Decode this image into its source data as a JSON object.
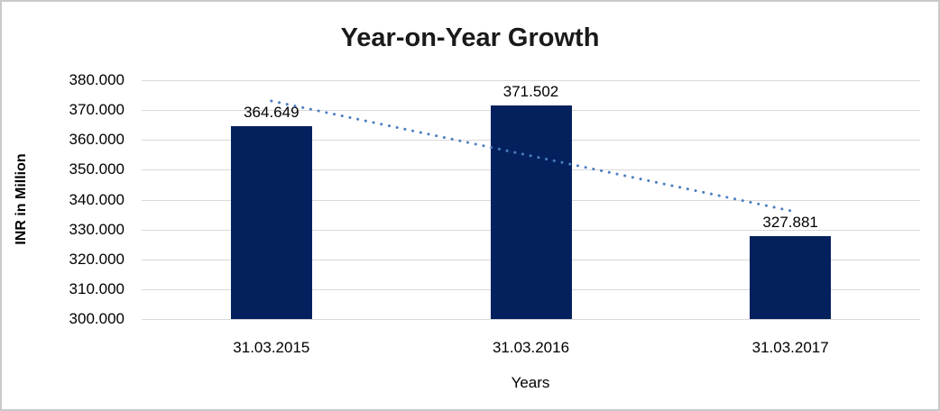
{
  "frame": {
    "background": "#ffffff",
    "border_color": "#c9c9c9"
  },
  "chart_data": {
    "type": "bar",
    "title": "Year-on-Year Growth",
    "xlabel": "Years",
    "ylabel": "INR in Million",
    "categories": [
      "31.03.2015",
      "31.03.2016",
      "31.03.2017"
    ],
    "values": [
      364.649,
      371.502,
      327.881
    ],
    "value_labels": [
      "364.649",
      "371.502",
      "327.881"
    ],
    "ylim": [
      300,
      380
    ],
    "y_ticks": [
      "380.000",
      "370.000",
      "360.000",
      "350.000",
      "340.000",
      "330.000",
      "320.000",
      "310.000",
      "300.000"
    ],
    "y_tick_values": [
      380,
      370,
      360,
      350,
      340,
      330,
      320,
      310,
      300
    ],
    "grid": true,
    "legend": "none",
    "bar_color": "#04215e",
    "gridline_color": "#d9d9d9",
    "label_color": "#000000",
    "title_color": "#1a1a1a",
    "trendline": {
      "type": "linear",
      "style": "dotted",
      "color": "#4a7ebf"
    }
  }
}
